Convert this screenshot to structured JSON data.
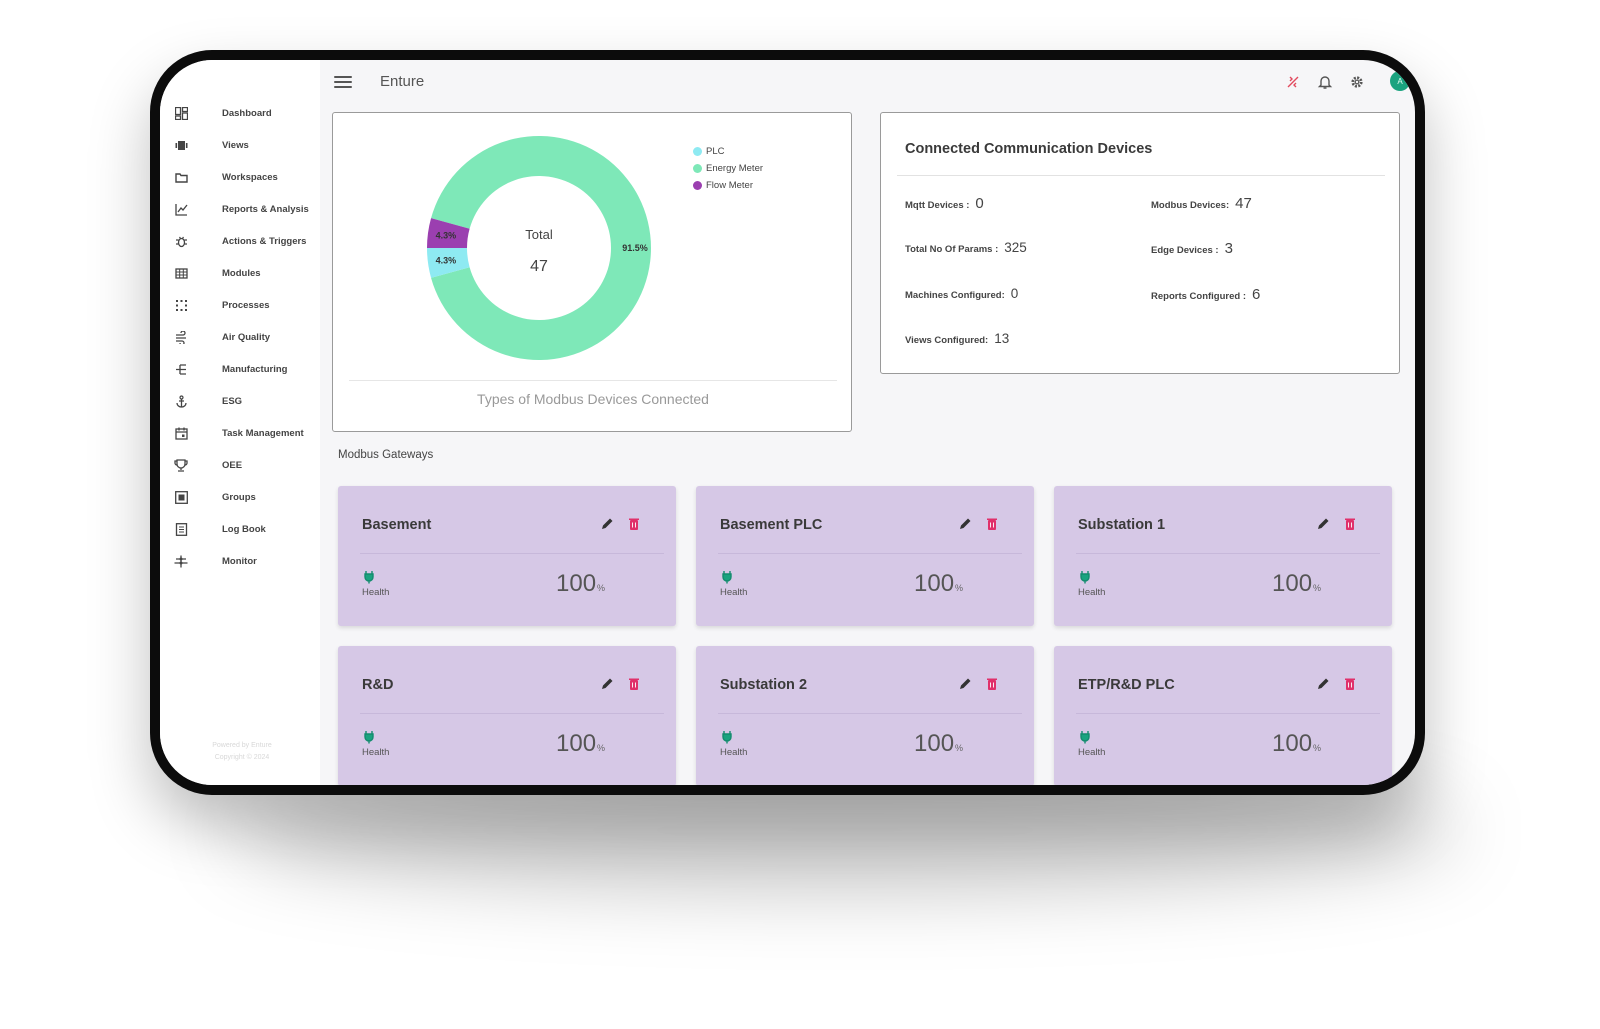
{
  "app": {
    "title": "Enture",
    "avatar_initial": "A"
  },
  "sidebar": {
    "items": [
      {
        "label": "Dashboard",
        "icon": "dashboard-icon"
      },
      {
        "label": "Views",
        "icon": "views-icon"
      },
      {
        "label": "Workspaces",
        "icon": "folder-icon"
      },
      {
        "label": "Reports & Analysis",
        "icon": "line-chart-icon"
      },
      {
        "label": "Actions & Triggers",
        "icon": "bug-icon"
      },
      {
        "label": "Modules",
        "icon": "grid-icon"
      },
      {
        "label": "Processes",
        "icon": "processes-icon"
      },
      {
        "label": "Air Quality",
        "icon": "air-icon"
      },
      {
        "label": "Manufacturing",
        "icon": "tree-icon"
      },
      {
        "label": "ESG",
        "icon": "anchor-icon"
      },
      {
        "label": "Task Management",
        "icon": "calendar-icon"
      },
      {
        "label": "OEE",
        "icon": "trophy-icon"
      },
      {
        "label": "Groups",
        "icon": "groups-icon"
      },
      {
        "label": "Log Book",
        "icon": "logbook-icon"
      },
      {
        "label": "Monitor",
        "icon": "monitor-icon"
      }
    ],
    "footer": [
      "Powered by Enture",
      "Copyright © 2024"
    ]
  },
  "chart": {
    "caption": "Types of Modbus Devices Connected",
    "center_label": "Total",
    "center_value": "47",
    "chart_data": {
      "type": "pie",
      "categories": [
        "PLC",
        "Energy Meter",
        "Flow Meter"
      ],
      "values": [
        4.3,
        91.5,
        4.3
      ],
      "value_labels": [
        "4.3%",
        "91.5%",
        "4.3%"
      ],
      "colors": [
        "#8eeaf2",
        "#7ee8b8",
        "#9b3fb0"
      ],
      "legend": "top-right"
    }
  },
  "devices": {
    "title": "Connected Communication Devices",
    "stats": [
      {
        "label": "Mqtt Devices :",
        "value": "0"
      },
      {
        "label": "Modbus Devices:",
        "value": "47"
      },
      {
        "label": "Total No Of Params :",
        "value": "325"
      },
      {
        "label": "Edge Devices :",
        "value": "3"
      },
      {
        "label": "Machines Configured:",
        "value": "0"
      },
      {
        "label": "Reports Configured :",
        "value": "6"
      },
      {
        "label": "Views Configured:",
        "value": "13"
      }
    ]
  },
  "gateways": {
    "section_title": "Modbus Gateways",
    "health_label": "Health",
    "unit": "%",
    "items": [
      {
        "name": "Basement",
        "health": "100"
      },
      {
        "name": "Basement PLC",
        "health": "100"
      },
      {
        "name": "Substation 1",
        "health": "100"
      },
      {
        "name": "R&D",
        "health": "100"
      },
      {
        "name": "Substation 2",
        "health": "100"
      },
      {
        "name": "ETP/R&D PLC",
        "health": "100"
      }
    ]
  },
  "colors": {
    "accent": "#1aa37f",
    "delete": "#e0306a",
    "gateway_card": "#d6c8e6"
  }
}
